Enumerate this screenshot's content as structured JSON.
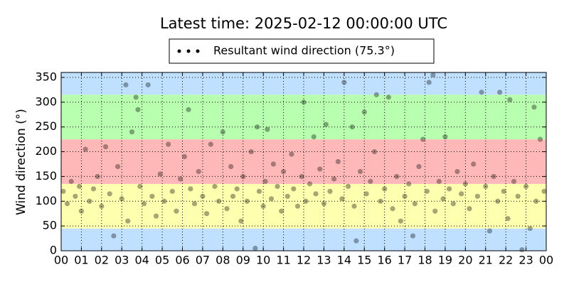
{
  "chart_data": {
    "type": "scatter",
    "title": "Latest time: 2025-02-12 00:00:00 UTC",
    "y_label": "Wind direction (°)",
    "legend": "upper center",
    "grid": true,
    "alpha": 0.35,
    "bands": [
      {
        "from": 0,
        "to": 45,
        "color": "#bfe0ff"
      },
      {
        "from": 45,
        "to": 135,
        "color": "#ffffb0"
      },
      {
        "from": 135,
        "to": 225,
        "color": "#ffb8b8"
      },
      {
        "from": 225,
        "to": 315,
        "color": "#b8ffb0"
      },
      {
        "from": 315,
        "to": 360,
        "color": "#bfe0ff"
      }
    ],
    "xlim": [
      0,
      24
    ],
    "xticks": [
      {
        "value": 0,
        "label": "00"
      },
      {
        "value": 1,
        "label": "01"
      },
      {
        "value": 2,
        "label": "02"
      },
      {
        "value": 3,
        "label": "03"
      },
      {
        "value": 4,
        "label": "04"
      },
      {
        "value": 5,
        "label": "05"
      },
      {
        "value": 6,
        "label": "06"
      },
      {
        "value": 7,
        "label": "07"
      },
      {
        "value": 8,
        "label": "08"
      },
      {
        "value": 9,
        "label": "09"
      },
      10,
      11,
      12,
      13,
      14,
      15,
      16,
      17,
      18,
      19,
      20,
      21,
      22,
      23,
      {
        "value": 24,
        "label": "00"
      }
    ],
    "ylim": [
      0,
      360
    ],
    "yticks": [
      0,
      50,
      100,
      150,
      200,
      250,
      300,
      350
    ],
    "series": [
      {
        "name": "Resultant wind direction (75.3°)",
        "color": "#000000",
        "x": [
          0.1,
          0.3,
          0.5,
          0.7,
          0.9,
          1.0,
          1.2,
          1.4,
          1.6,
          1.8,
          2.0,
          2.2,
          2.4,
          2.6,
          2.8,
          3.0,
          3.2,
          3.3,
          3.5,
          3.7,
          3.8,
          3.9,
          4.1,
          4.3,
          4.5,
          4.7,
          4.9,
          5.1,
          5.3,
          5.5,
          5.7,
          5.9,
          6.1,
          6.3,
          6.4,
          6.6,
          6.8,
          7.0,
          7.2,
          7.4,
          7.6,
          7.8,
          8.0,
          8.2,
          8.4,
          8.5,
          8.7,
          8.9,
          9.0,
          9.2,
          9.4,
          9.6,
          9.7,
          9.8,
          10.0,
          10.1,
          10.2,
          10.4,
          10.5,
          10.7,
          10.9,
          11.0,
          11.2,
          11.4,
          11.5,
          11.7,
          11.9,
          12.0,
          12.1,
          12.3,
          12.5,
          12.6,
          12.8,
          13.0,
          13.1,
          13.3,
          13.5,
          13.7,
          13.9,
          14.0,
          14.2,
          14.4,
          14.5,
          14.6,
          14.8,
          15.0,
          15.1,
          15.3,
          15.5,
          15.6,
          15.8,
          16.0,
          16.2,
          16.4,
          16.6,
          16.8,
          17.0,
          17.2,
          17.4,
          17.5,
          17.7,
          17.9,
          18.1,
          18.2,
          18.4,
          18.5,
          18.7,
          18.9,
          19.0,
          19.2,
          19.4,
          19.6,
          19.8,
          20.0,
          20.2,
          20.4,
          20.6,
          20.8,
          21.0,
          21.2,
          21.4,
          21.6,
          21.7,
          21.9,
          22.1,
          22.2,
          22.4,
          22.6,
          22.8,
          23.0,
          23.2,
          23.4,
          23.5,
          23.7,
          23.9
        ],
        "values": [
          120,
          95,
          140,
          110,
          130,
          80,
          205,
          100,
          125,
          150,
          90,
          210,
          115,
          30,
          170,
          105,
          335,
          60,
          240,
          310,
          285,
          130,
          95,
          335,
          110,
          70,
          155,
          100,
          215,
          120,
          80,
          145,
          190,
          285,
          125,
          95,
          160,
          110,
          75,
          215,
          130,
          100,
          240,
          85,
          170,
          110,
          125,
          60,
          150,
          100,
          200,
          5,
          250,
          120,
          90,
          140,
          245,
          105,
          175,
          130,
          80,
          160,
          110,
          195,
          125,
          90,
          150,
          300,
          100,
          135,
          230,
          115,
          165,
          95,
          255,
          120,
          145,
          180,
          105,
          340,
          130,
          250,
          90,
          20,
          160,
          280,
          115,
          140,
          200,
          315,
          100,
          125,
          310,
          85,
          150,
          60,
          110,
          135,
          30,
          95,
          170,
          225,
          120,
          340,
          355,
          80,
          140,
          105,
          230,
          125,
          95,
          160,
          115,
          135,
          85,
          175,
          110,
          320,
          130,
          40,
          150,
          100,
          320,
          120,
          65,
          305,
          140,
          110,
          2,
          130,
          45,
          290,
          100,
          225,
          120
        ]
      }
    ]
  }
}
